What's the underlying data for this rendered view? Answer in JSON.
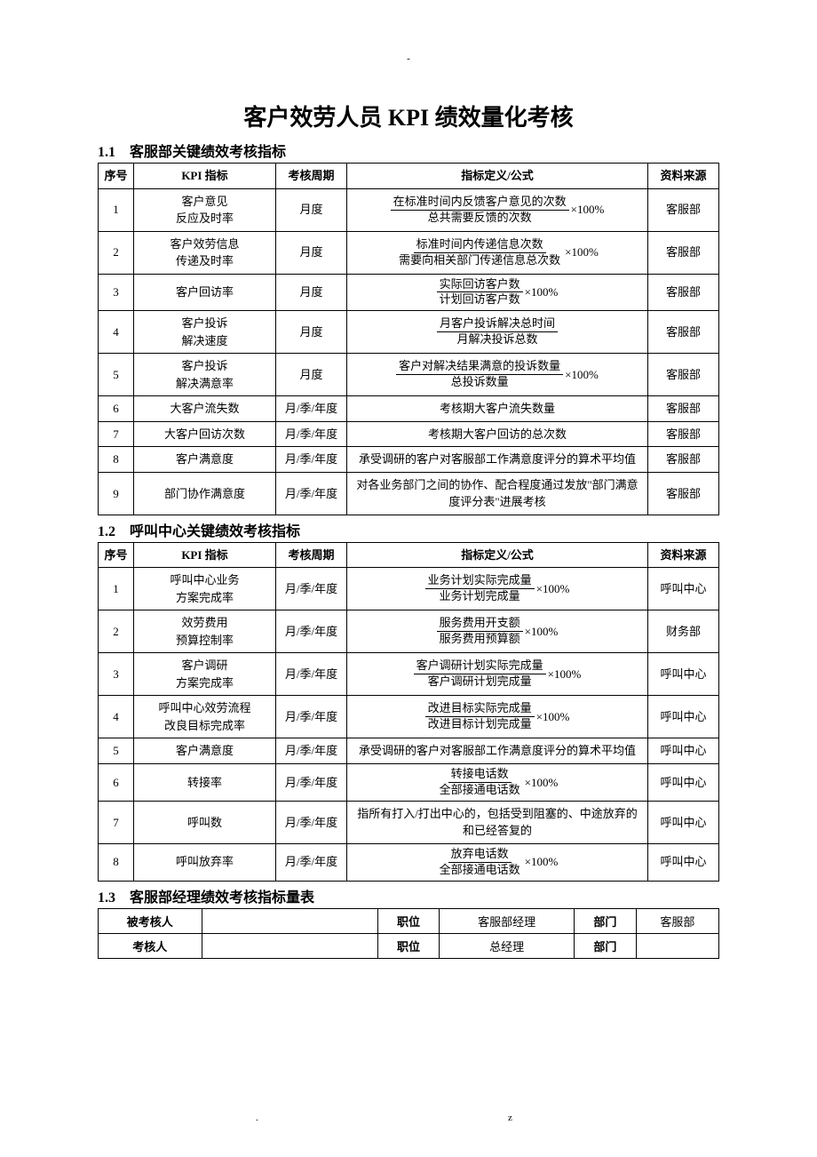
{
  "page": {
    "top_dash": "-",
    "foot_dot": ".",
    "foot_z": "z"
  },
  "title": "客户效劳人员 KPI 绩效量化考核",
  "sections": {
    "s1": "1.1　客服部关键绩效考核指标",
    "s2": "1.2　呼叫中心关键绩效考核指标",
    "s3": "1.3　客服部经理绩效考核指标量表"
  },
  "headers": {
    "seq": "序号",
    "kpi": "KPI 指标",
    "cycle": "考核周期",
    "def": "指标定义/公式",
    "src": "资料来源"
  },
  "t1": {
    "r1": {
      "seq": "1",
      "kpi1": "客户意见",
      "kpi2": "反应及时率",
      "cycle": "月度",
      "num": "在标准时间内反馈客户意见的次数",
      "den": "总共需要反馈的次数",
      "suffix": "×100%",
      "src": "客服部"
    },
    "r2": {
      "seq": "2",
      "kpi1": "客户效劳信息",
      "kpi2": "传递及时率",
      "cycle": "月度",
      "num": "标准时间内传递信息次数",
      "den": "需要向相关部门传递信息总次数",
      "suffix": "×100%",
      "src": "客服部"
    },
    "r3": {
      "seq": "3",
      "kpi": "客户回访率",
      "cycle": "月度",
      "num": "实际回访客户数",
      "den": "计划回访客户数",
      "suffix": "×100%",
      "src": "客服部"
    },
    "r4": {
      "seq": "4",
      "kpi1": "客户投诉",
      "kpi2": "解决速度",
      "cycle": "月度",
      "num": "月客户投诉解决总时间",
      "den": "月解决投诉总数",
      "src": "客服部"
    },
    "r5": {
      "seq": "5",
      "kpi1": "客户投诉",
      "kpi2": "解决满意率",
      "cycle": "月度",
      "num": "客户对解决结果满意的投诉数量",
      "den": "总投诉数量",
      "suffix": "×100%",
      "src": "客服部"
    },
    "r6": {
      "seq": "6",
      "kpi": "大客户流失数",
      "cycle": "月/季/年度",
      "def": "考核期大客户流失数量",
      "src": "客服部"
    },
    "r7": {
      "seq": "7",
      "kpi": "大客户回访次数",
      "cycle": "月/季/年度",
      "def": "考核期大客户回访的总次数",
      "src": "客服部"
    },
    "r8": {
      "seq": "8",
      "kpi": "客户满意度",
      "cycle": "月/季/年度",
      "def": "承受调研的客户对客服部工作满意度评分的算术平均值",
      "src": "客服部"
    },
    "r9": {
      "seq": "9",
      "kpi": "部门协作满意度",
      "cycle": "月/季/年度",
      "def": "对各业务部门之间的协作、配合程度通过发放\"部门满意度评分表\"进展考核",
      "src": "客服部"
    }
  },
  "t2": {
    "r1": {
      "seq": "1",
      "kpi1": "呼叫中心业务",
      "kpi2": "方案完成率",
      "cycle": "月/季/年度",
      "num": "业务计划实际完成量",
      "den": "业务计划完成量",
      "suffix": "×100%",
      "src": "呼叫中心"
    },
    "r2": {
      "seq": "2",
      "kpi1": "效劳费用",
      "kpi2": "预算控制率",
      "cycle": "月/季/年度",
      "num": "服务费用开支额",
      "den": "服务费用预算额",
      "suffix": "×100%",
      "src": "财务部"
    },
    "r3": {
      "seq": "3",
      "kpi1": "客户调研",
      "kpi2": "方案完成率",
      "cycle": "月/季/年度",
      "num": "客户调研计划实际完成量",
      "den": "客户调研计划完成量",
      "suffix": "×100%",
      "src": "呼叫中心"
    },
    "r4": {
      "seq": "4",
      "kpi1": "呼叫中心效劳流程",
      "kpi2": "改良目标完成率",
      "cycle": "月/季/年度",
      "num": "改进目标实际完成量",
      "den": "改进目标计划完成量",
      "suffix": "×100%",
      "src": "呼叫中心"
    },
    "r5": {
      "seq": "5",
      "kpi": "客户满意度",
      "cycle": "月/季/年度",
      "def": "承受调研的客户对客服部工作满意度评分的算术平均值",
      "src": "呼叫中心"
    },
    "r6": {
      "seq": "6",
      "kpi": "转接率",
      "cycle": "月/季/年度",
      "num": "转接电话数",
      "den": "全部接通电话数",
      "suffix": "×100%",
      "src": "呼叫中心"
    },
    "r7": {
      "seq": "7",
      "kpi": "呼叫数",
      "cycle": "月/季/年度",
      "def": "指所有打入/打出中心的，包括受到阻塞的、中途放弃的和已经答复的",
      "src": "呼叫中心"
    },
    "r8": {
      "seq": "8",
      "kpi": "呼叫放弃率",
      "cycle": "月/季/年度",
      "num": "放弃电话数",
      "den": "全部接通电话数",
      "suffix": "×100%",
      "src": "呼叫中心"
    }
  },
  "t3": {
    "row1": {
      "label": "被考核人",
      "val": "",
      "pos_label": "职位",
      "pos_val": "客服部经理",
      "dept_label": "部门",
      "dept_val": "客服部"
    },
    "row2": {
      "label": "考核人",
      "val": "",
      "pos_label": "职位",
      "pos_val": "总经理",
      "dept_label": "部门",
      "dept_val": ""
    }
  }
}
